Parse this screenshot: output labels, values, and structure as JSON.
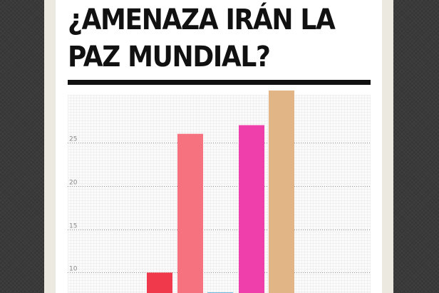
{
  "title": "¿AMENAZA IRÁN LA PAZ MUNDIAL?",
  "title_lines": [
    "¿AMENAZA IRÁN LA",
    "PAZ MUNDIAL?"
  ],
  "chart_data": {
    "type": "bar",
    "title": "¿AMENAZA IRÁN LA PAZ MUNDIAL?",
    "xlabel": "",
    "ylabel": "",
    "grid": true,
    "y_ticks": [
      10,
      15,
      20,
      25
    ],
    "ylim": [
      6,
      30.5
    ],
    "bars": [
      {
        "value": 10,
        "color": "#f0394b"
      },
      {
        "value": 26,
        "color": "#f5727e"
      },
      {
        "value": 7.7,
        "color": "#2d9ad6"
      },
      {
        "value": 27,
        "color": "#ef3fab"
      },
      {
        "value": 31,
        "color": "#e1b586"
      }
    ]
  }
}
